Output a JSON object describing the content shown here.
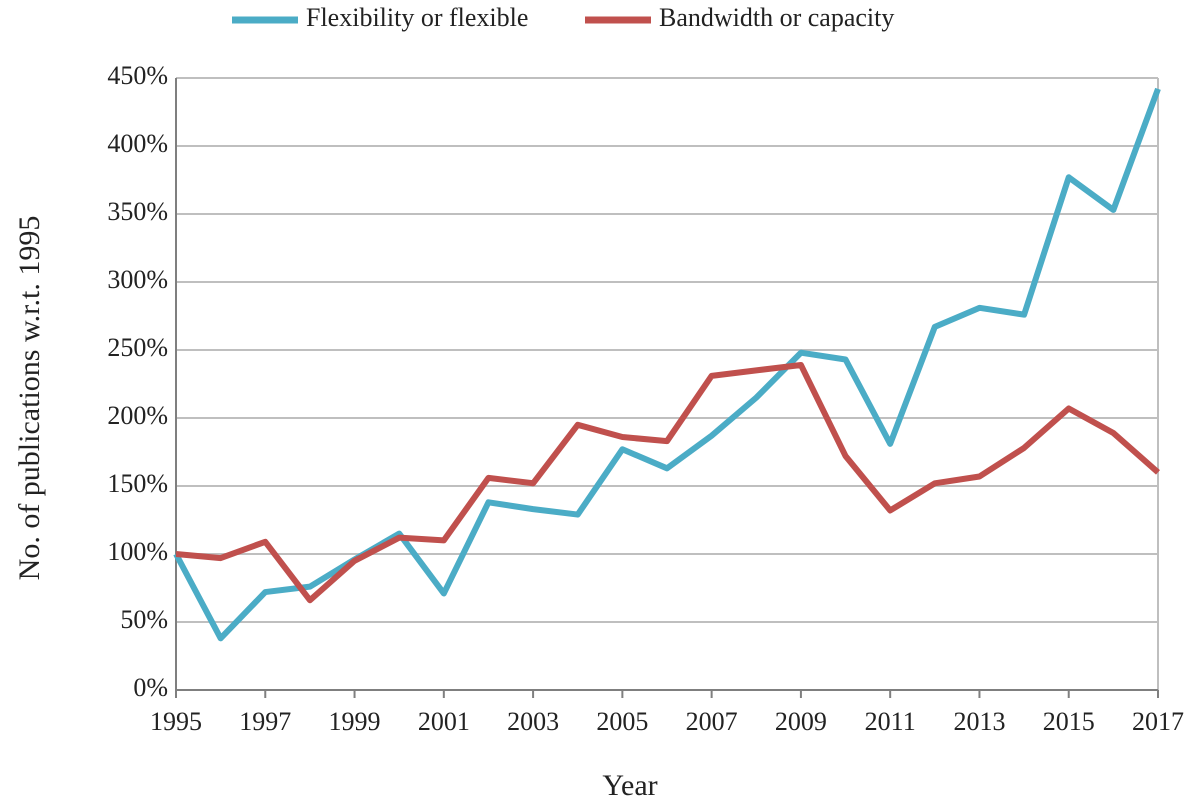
{
  "chart_data": {
    "type": "line",
    "x_label": "Year",
    "y_label": "No. of publications w.r.t. 1995",
    "x": [
      1995,
      1996,
      1997,
      1998,
      1999,
      2000,
      2001,
      2002,
      2003,
      2004,
      2005,
      2006,
      2007,
      2008,
      2009,
      2010,
      2011,
      2012,
      2013,
      2014,
      2015,
      2016,
      2017
    ],
    "series": [
      {
        "name": "Flexibility or flexible",
        "color": "#4bacc6",
        "values": [
          100,
          38,
          72,
          76,
          96,
          115,
          71,
          138,
          133,
          129,
          177,
          163,
          187,
          215,
          248,
          243,
          181,
          267,
          281,
          276,
          377,
          353,
          442
        ]
      },
      {
        "name": "Bandwidth or capacity",
        "color": "#c0504d",
        "values": [
          100,
          97,
          109,
          66,
          95,
          112,
          110,
          156,
          152,
          195,
          186,
          183,
          231,
          235,
          239,
          172,
          132,
          152,
          157,
          178,
          207,
          189,
          160
        ]
      }
    ],
    "xlim": [
      1995,
      2017
    ],
    "xticks": [
      1995,
      1997,
      1999,
      2001,
      2003,
      2005,
      2007,
      2009,
      2011,
      2013,
      2015,
      2017
    ],
    "ylim": [
      0,
      450
    ],
    "yticks": [
      {
        "value": 0,
        "label": "0%"
      },
      {
        "value": 50,
        "label": "50%"
      },
      {
        "value": 100,
        "label": "100%"
      },
      {
        "value": 150,
        "label": "150%"
      },
      {
        "value": 200,
        "label": "200%"
      },
      {
        "value": 250,
        "label": "250%"
      },
      {
        "value": 300,
        "label": "300%"
      },
      {
        "value": 350,
        "label": "350%"
      },
      {
        "value": 400,
        "label": "400%"
      },
      {
        "value": 450,
        "label": "450%"
      }
    ],
    "grid": true,
    "legend": "top"
  }
}
